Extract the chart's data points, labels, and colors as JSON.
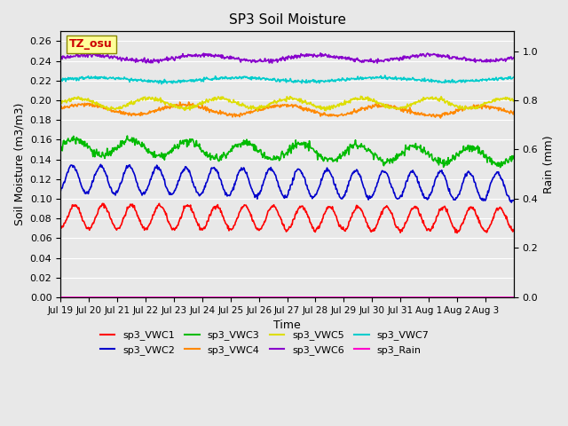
{
  "title": "SP3 Soil Moisture",
  "xlabel": "Time",
  "ylabel_left": "Soil Moisture (m3/m3)",
  "ylabel_right": "Rain (mm)",
  "annotation": "TZ_osu",
  "ylim_left": [
    0.0,
    0.27
  ],
  "ylim_right": [
    0.0,
    1.08
  ],
  "yticks_left": [
    0.0,
    0.02,
    0.04,
    0.06,
    0.08,
    0.1,
    0.12,
    0.14,
    0.16,
    0.18,
    0.2,
    0.22,
    0.24,
    0.26
  ],
  "yticks_right": [
    0.0,
    0.2,
    0.4,
    0.6,
    0.8,
    1.0
  ],
  "xtick_labels": [
    "Jul 19",
    "Jul 20",
    "Jul 21",
    "Jul 22",
    "Jul 23",
    "Jul 24",
    "Jul 25",
    "Jul 26",
    "Jul 27",
    "Jul 28",
    "Jul 29",
    "Jul 30",
    "Jul 31",
    "Aug 1",
    "Aug 2",
    "Aug 3"
  ],
  "background_color": "#e8e8e8",
  "plot_bg_color": "#e8e8e8",
  "series": {
    "sp3_VWC1": {
      "color": "#ff0000"
    },
    "sp3_VWC2": {
      "color": "#0000cc"
    },
    "sp3_VWC3": {
      "color": "#00bb00"
    },
    "sp3_VWC4": {
      "color": "#ff8800"
    },
    "sp3_VWC5": {
      "color": "#dddd00"
    },
    "sp3_VWC6": {
      "color": "#8800cc"
    },
    "sp3_VWC7": {
      "color": "#00cccc"
    },
    "sp3_Rain": {
      "color": "#ff00cc"
    }
  },
  "legend_order": [
    "sp3_VWC1",
    "sp3_VWC2",
    "sp3_VWC3",
    "sp3_VWC4",
    "sp3_VWC5",
    "sp3_VWC6",
    "sp3_VWC7",
    "sp3_Rain"
  ]
}
